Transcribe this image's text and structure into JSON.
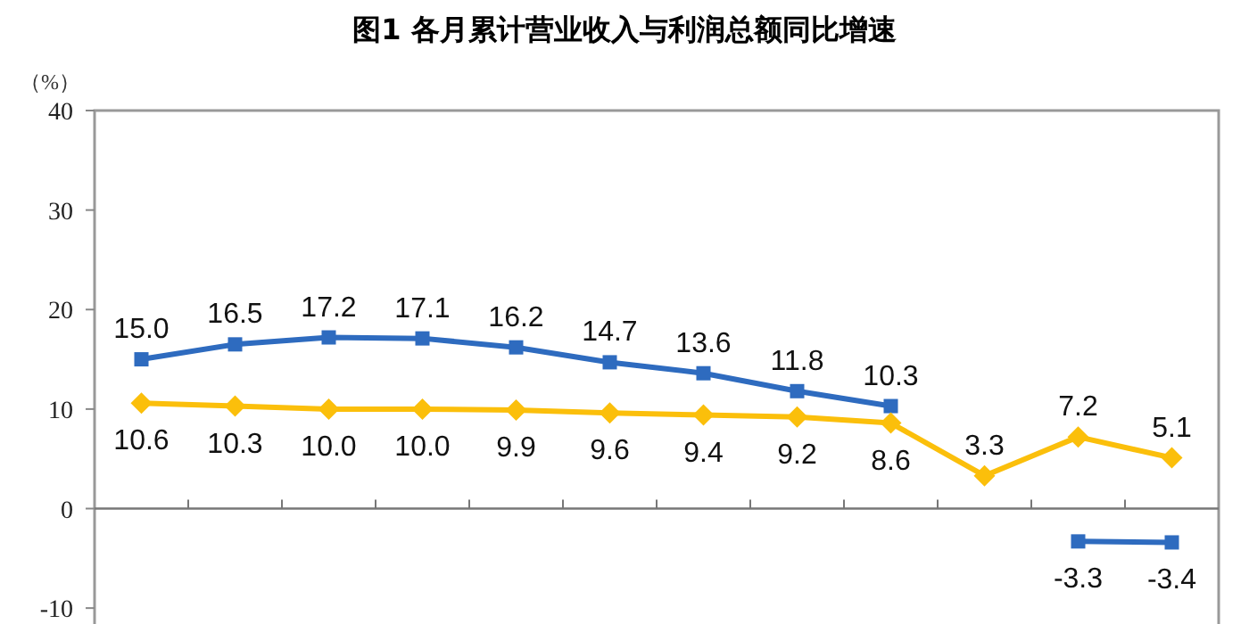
{
  "chart_data": {
    "type": "line",
    "title": "图1 各月累计营业收入与利润总额同比增速",
    "ylabel": "（%）",
    "categories": [
      null,
      null,
      null,
      null,
      null,
      null,
      null,
      null,
      null,
      null,
      null,
      null
    ],
    "ylim": [
      -11.6,
      40
    ],
    "yticks": [
      -10,
      0,
      10,
      20,
      30,
      40
    ],
    "series": [
      {
        "color": "#2e6bbf",
        "marker": "square",
        "values": [
          15.0,
          16.5,
          17.2,
          17.1,
          16.2,
          14.7,
          13.6,
          11.8,
          10.3,
          null,
          -3.3,
          -3.4
        ],
        "value_labels": [
          "15.0",
          "16.5",
          "17.2",
          "17.1",
          "16.2",
          "14.7",
          "13.6",
          "11.8",
          "10.3",
          null,
          "-3.3",
          "-3.4"
        ]
      },
      {
        "color": "#fbbf0b",
        "marker": "diamond",
        "values": [
          10.6,
          10.3,
          10.0,
          10.0,
          9.9,
          9.6,
          9.4,
          9.2,
          8.6,
          3.3,
          7.2,
          5.1
        ],
        "value_labels": [
          "10.6",
          "10.3",
          "10.0",
          "10.0",
          "9.9",
          "9.6",
          "9.4",
          "9.2",
          "8.6",
          "3.3",
          "7.2",
          "5.1"
        ]
      }
    ]
  }
}
